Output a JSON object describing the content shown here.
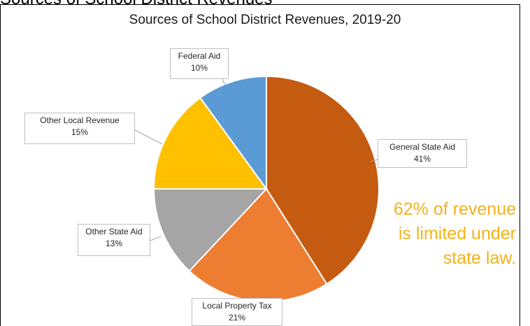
{
  "cut_off_text": "Sources of School District Revenues",
  "chart_data": {
    "type": "pie",
    "title": "Sources of School District Revenues, 2019-20",
    "slices": [
      {
        "label": "General State Aid",
        "value": 41,
        "display": "41%",
        "color": "#C55A11"
      },
      {
        "label": "Local Property Tax",
        "value": 21,
        "display": "21%",
        "color": "#ED7D31"
      },
      {
        "label": "Other State Aid",
        "value": 13,
        "display": "13%",
        "color": "#A5A5A5"
      },
      {
        "label": "Other Local Revenue",
        "value": 15,
        "display": "15%",
        "color": "#FFC000"
      },
      {
        "label": "Federal Aid",
        "value": 10,
        "display": "10%",
        "color": "#5B9BD5"
      }
    ],
    "annotation": [
      "62% of revenue",
      "is limited under",
      "state law."
    ],
    "annotation_color": "#F2B21D"
  }
}
